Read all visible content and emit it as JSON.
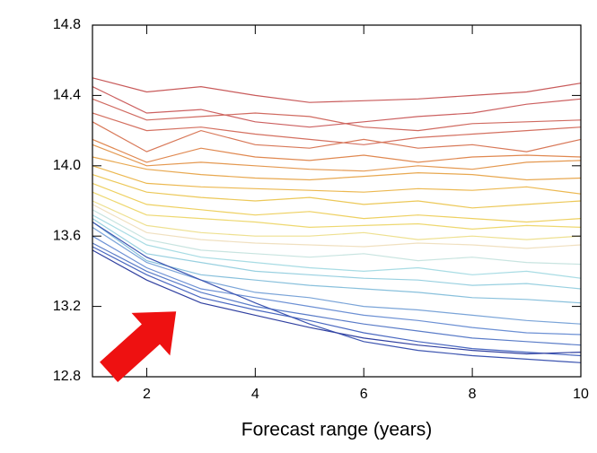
{
  "chart_data": {
    "type": "line",
    "x_label": "Forecast range (years)",
    "x": [
      1,
      2,
      3,
      4,
      5,
      6,
      7,
      8,
      9,
      10
    ],
    "xlim": [
      1,
      10
    ],
    "xticks": [
      2,
      4,
      6,
      8,
      10
    ],
    "ylim": [
      12.8,
      14.8
    ],
    "yticks": [
      12.8,
      13.2,
      13.6,
      {
        "value": 14,
        "label": "14.0"
      },
      14.4,
      14.8
    ],
    "series": [
      {
        "color": "#c85a5a",
        "values": [
          14.5,
          14.42,
          14.45,
          14.4,
          14.36,
          14.37,
          14.38,
          14.4,
          14.42,
          14.47
        ]
      },
      {
        "color": "#cc6060",
        "values": [
          14.45,
          14.3,
          14.32,
          14.25,
          14.22,
          14.25,
          14.28,
          14.3,
          14.35,
          14.38
        ]
      },
      {
        "color": "#d06a60",
        "values": [
          14.38,
          14.26,
          14.28,
          14.3,
          14.28,
          14.22,
          14.2,
          14.24,
          14.25,
          14.26
        ]
      },
      {
        "color": "#d47060",
        "values": [
          14.3,
          14.2,
          14.22,
          14.18,
          14.15,
          14.12,
          14.16,
          14.18,
          14.2,
          14.22
        ]
      },
      {
        "color": "#d87858",
        "values": [
          14.25,
          14.08,
          14.2,
          14.12,
          14.1,
          14.15,
          14.1,
          14.12,
          14.08,
          14.15
        ]
      },
      {
        "color": "#e08850",
        "values": [
          14.15,
          14.02,
          14.1,
          14.05,
          14.03,
          14.06,
          14.02,
          14.05,
          14.06,
          14.05
        ]
      },
      {
        "color": "#e49850",
        "values": [
          14.12,
          14.0,
          14.02,
          14.0,
          13.98,
          13.97,
          14.0,
          13.98,
          14.02,
          14.03
        ]
      },
      {
        "color": "#e8a850",
        "values": [
          14.05,
          13.98,
          13.95,
          13.93,
          13.92,
          13.94,
          13.96,
          13.95,
          13.92,
          13.93
        ]
      },
      {
        "color": "#ecb850",
        "values": [
          14.0,
          13.9,
          13.88,
          13.87,
          13.86,
          13.85,
          13.87,
          13.86,
          13.88,
          13.84
        ]
      },
      {
        "color": "#ecc858",
        "values": [
          13.95,
          13.85,
          13.82,
          13.8,
          13.82,
          13.78,
          13.8,
          13.76,
          13.78,
          13.8
        ]
      },
      {
        "color": "#eed060",
        "values": [
          13.9,
          13.78,
          13.75,
          13.72,
          13.74,
          13.7,
          13.72,
          13.7,
          13.68,
          13.7
        ]
      },
      {
        "color": "#eed870",
        "values": [
          13.85,
          13.72,
          13.7,
          13.68,
          13.65,
          13.66,
          13.67,
          13.64,
          13.66,
          13.65
        ]
      },
      {
        "color": "#eee090",
        "values": [
          13.8,
          13.66,
          13.62,
          13.6,
          13.6,
          13.62,
          13.58,
          13.6,
          13.58,
          13.6
        ]
      },
      {
        "color": "#f0e0c0",
        "values": [
          13.78,
          13.62,
          13.58,
          13.56,
          13.55,
          13.54,
          13.56,
          13.55,
          13.53,
          13.55
        ]
      },
      {
        "color": "#c8e4e0",
        "values": [
          13.75,
          13.58,
          13.52,
          13.5,
          13.48,
          13.5,
          13.46,
          13.48,
          13.45,
          13.44
        ]
      },
      {
        "color": "#a8dce4",
        "values": [
          13.72,
          13.55,
          13.48,
          13.45,
          13.42,
          13.4,
          13.42,
          13.38,
          13.4,
          13.36
        ]
      },
      {
        "color": "#98d0e0",
        "values": [
          13.7,
          13.5,
          13.45,
          13.4,
          13.38,
          13.36,
          13.35,
          13.32,
          13.33,
          13.3
        ]
      },
      {
        "color": "#88c0dc",
        "values": [
          13.68,
          13.46,
          13.38,
          13.35,
          13.32,
          13.3,
          13.28,
          13.25,
          13.24,
          13.22
        ]
      },
      {
        "color": "#7aa4d8",
        "values": [
          13.65,
          13.45,
          13.35,
          13.28,
          13.25,
          13.2,
          13.18,
          13.15,
          13.12,
          13.1
        ]
      },
      {
        "color": "#6c90d4",
        "values": [
          13.6,
          13.42,
          13.3,
          13.25,
          13.2,
          13.15,
          13.12,
          13.08,
          13.05,
          13.04
        ]
      },
      {
        "color": "#5a7cc8",
        "values": [
          13.56,
          13.4,
          13.28,
          13.2,
          13.15,
          13.1,
          13.06,
          13.02,
          13.0,
          12.98
        ]
      },
      {
        "color": "#4a68c0",
        "values": [
          13.54,
          13.38,
          13.25,
          13.18,
          13.12,
          13.05,
          13.0,
          12.96,
          12.94,
          12.92
        ]
      },
      {
        "color": "#3c54b0",
        "values": [
          13.68,
          13.48,
          13.35,
          13.22,
          13.1,
          13.0,
          12.95,
          12.92,
          12.9,
          12.88
        ]
      },
      {
        "color": "#3040a0",
        "values": [
          13.52,
          13.35,
          13.22,
          13.15,
          13.08,
          13.02,
          12.98,
          12.95,
          12.93,
          12.94
        ]
      }
    ]
  }
}
